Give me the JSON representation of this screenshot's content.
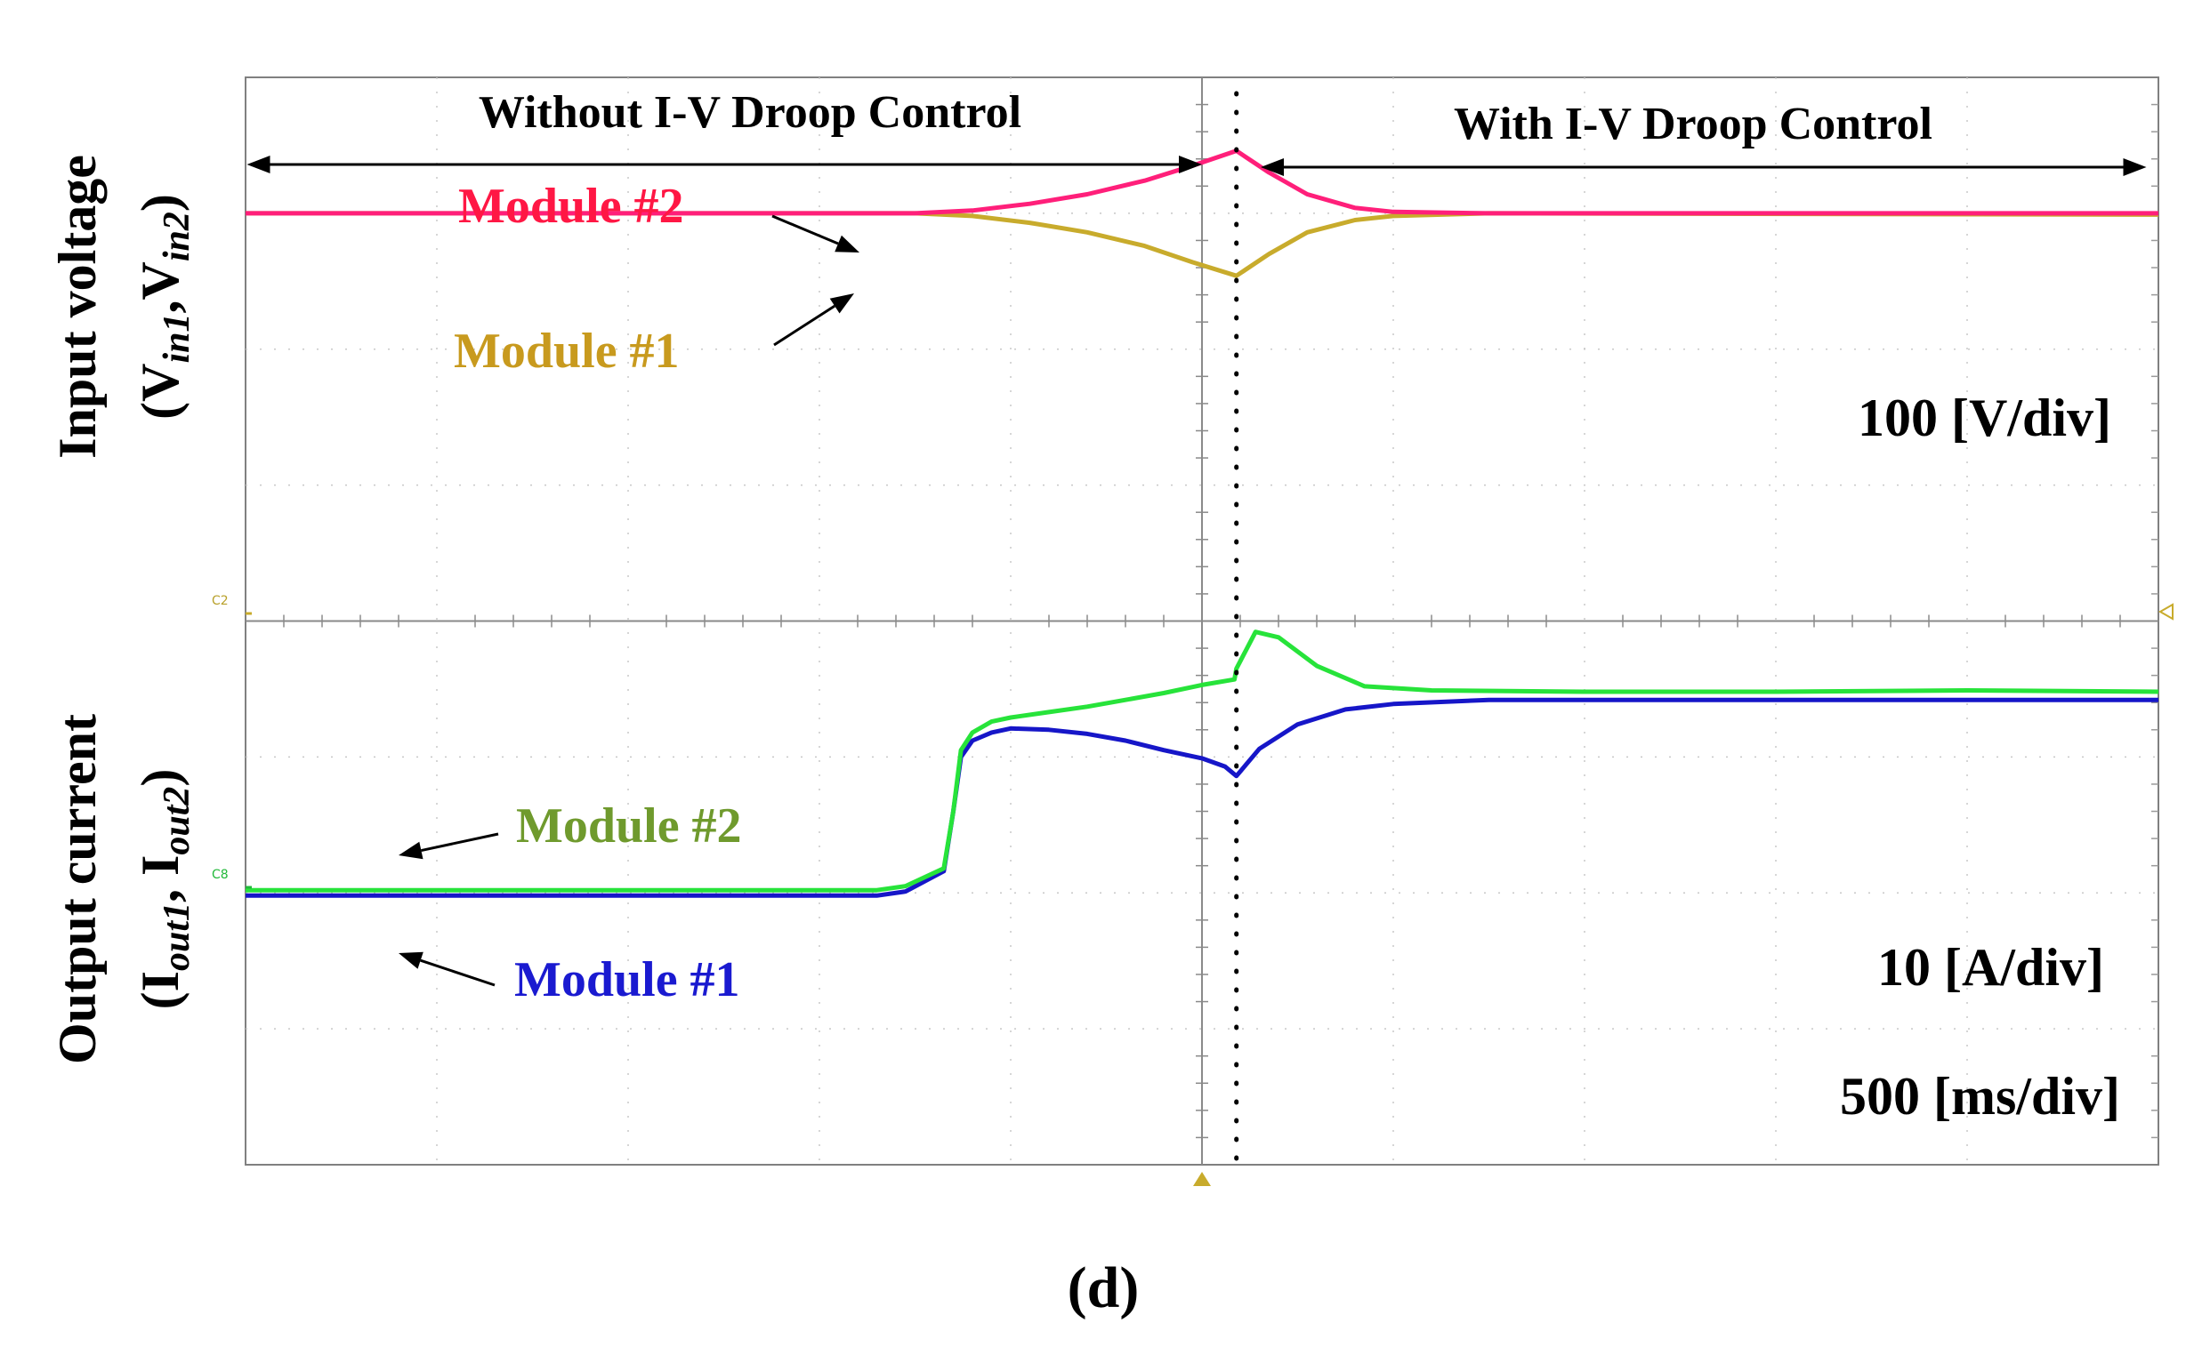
{
  "chart_data": {
    "type": "line",
    "title": "",
    "caption": "(d)",
    "x_axis": {
      "label": "",
      "range": [
        0,
        10
      ],
      "unit": "div",
      "scale_text": "500 [ms/div]",
      "gridlines": true
    },
    "regions": [
      {
        "label": "Without I-V Droop Control",
        "x_range": [
          0.1,
          5.0
        ]
      },
      {
        "label": "With I-V Droop Control",
        "x_range": [
          5.4,
          9.9
        ]
      }
    ],
    "event_marker_x": 5.18,
    "trigger_marker_x": 5.0,
    "channel_marks": [
      "C2",
      "C8"
    ],
    "panels": [
      {
        "name": "input-voltage",
        "ylabel_main": "Input voltage",
        "ylabel_sub": "(V",
        "ylabel_sub1": "in1",
        "ylabel_sep": ",V",
        "ylabel_sub2": "in2",
        "ylabel_close": ")",
        "scale_text": "100 [V/div]",
        "y_range_div": [
          0,
          4
        ],
        "series": [
          {
            "name": "Module #2",
            "color": "#ff1f7a",
            "label_color": "#ff1744",
            "x": [
              0,
              3.5,
              3.8,
              4.1,
              4.4,
              4.7,
              4.95,
              5.18,
              5.35,
              5.55,
              5.8,
              6.0,
              6.5,
              10
            ],
            "y": [
              3.0,
              3.0,
              3.02,
              3.07,
              3.14,
              3.24,
              3.35,
              3.46,
              3.3,
              3.14,
              3.04,
              3.01,
              3.0,
              3.0
            ]
          },
          {
            "name": "Module #1",
            "color": "#c8ab2c",
            "label_color": "#c89a1e",
            "x": [
              0,
              3.5,
              3.8,
              4.1,
              4.4,
              4.7,
              4.95,
              5.18,
              5.35,
              5.55,
              5.8,
              6.0,
              6.5,
              10
            ],
            "y": [
              3.0,
              3.0,
              2.98,
              2.93,
              2.86,
              2.76,
              2.64,
              2.54,
              2.7,
              2.86,
              2.95,
              2.98,
              3.0,
              2.99
            ]
          }
        ]
      },
      {
        "name": "output-current",
        "ylabel_main": "Output current",
        "ylabel_sub": "(I",
        "ylabel_sub1": "out1",
        "ylabel_sep": ", I",
        "ylabel_sub2": "out2",
        "ylabel_close": ")",
        "scale_text": "10 [A/div]",
        "y_range_div": [
          0,
          4
        ],
        "series": [
          {
            "name": "Module #2",
            "color": "#27e33a",
            "label_color": "#6f9a2d",
            "x": [
              0,
              3.3,
              3.45,
              3.65,
              3.7,
              3.74,
              3.8,
              3.9,
              4.0,
              4.2,
              4.4,
              4.6,
              4.8,
              5.0,
              5.17,
              5.18,
              5.28,
              5.4,
              5.6,
              5.85,
              6.2,
              7,
              8,
              9,
              10
            ],
            "y": [
              2.02,
              2.02,
              2.05,
              2.18,
              2.6,
              3.05,
              3.18,
              3.26,
              3.29,
              3.33,
              3.37,
              3.42,
              3.47,
              3.53,
              3.57,
              3.65,
              3.92,
              3.88,
              3.67,
              3.52,
              3.49,
              3.48,
              3.48,
              3.49,
              3.48
            ]
          },
          {
            "name": "Module #1",
            "color": "#1616c8",
            "label_color": "#1a1ad0",
            "x": [
              0,
              3.3,
              3.45,
              3.65,
              3.7,
              3.74,
              3.8,
              3.9,
              4.0,
              4.2,
              4.4,
              4.6,
              4.8,
              5.0,
              5.12,
              5.18,
              5.3,
              5.5,
              5.75,
              6.0,
              6.5,
              7,
              8,
              9,
              10
            ],
            "y": [
              1.98,
              1.98,
              2.01,
              2.16,
              2.6,
              3.0,
              3.12,
              3.18,
              3.21,
              3.2,
              3.17,
              3.12,
              3.05,
              2.99,
              2.93,
              2.86,
              3.06,
              3.24,
              3.35,
              3.39,
              3.42,
              3.42,
              3.42,
              3.42,
              3.42
            ]
          }
        ]
      }
    ]
  }
}
